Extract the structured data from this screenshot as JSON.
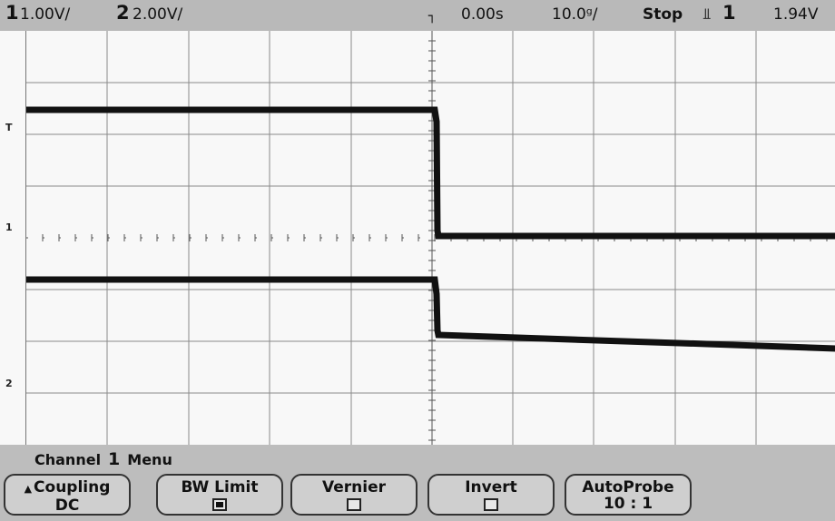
{
  "status": {
    "ch1_num": "1",
    "ch1_scale": "1.00V/",
    "ch2_num": "2",
    "ch2_scale": "2.00V/",
    "time_pos": "0.00s",
    "time_scale": "10.0ᵍ/",
    "run_state": "Stop",
    "trig_icon": "⫫",
    "trig_src": "1",
    "trig_level": "1.94V"
  },
  "markers": {
    "trigger": "T",
    "ch1": "1",
    "ch2": "2"
  },
  "menu": {
    "title_prefix": "Channel",
    "channel": "1",
    "title_suffix": "Menu",
    "softkeys": [
      {
        "label": "Coupling",
        "value": "DC",
        "icon": "up-arrow"
      },
      {
        "label": "BW Limit",
        "checked": true
      },
      {
        "label": "Vernier",
        "checked": false
      },
      {
        "label": "Invert",
        "checked": false
      },
      {
        "label": "AutoProbe",
        "value": "10 : 1"
      }
    ]
  },
  "colors": {
    "trace": "#111111",
    "grid": "#7a7a7a",
    "screen": "#f8f8f8",
    "bezel": "#bdbdbd"
  }
}
